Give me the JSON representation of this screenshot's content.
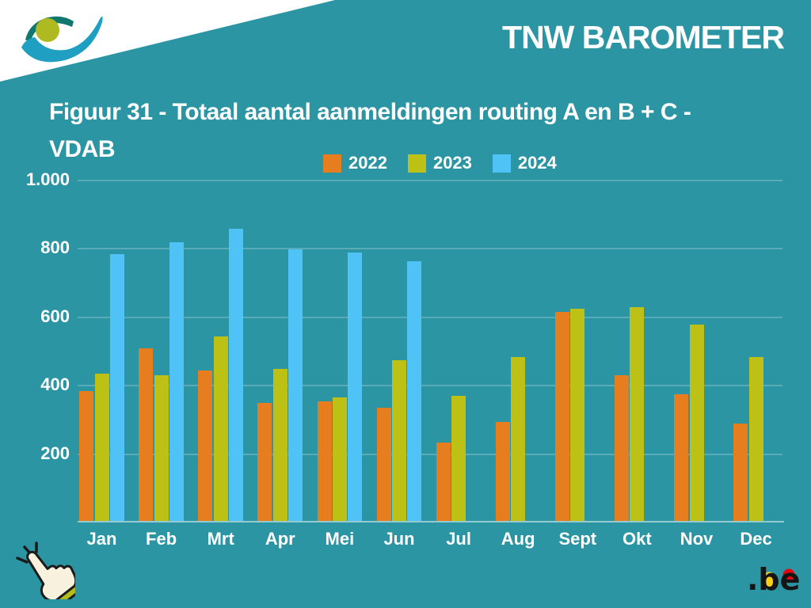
{
  "brand": {
    "title": "TNW BAROMETER"
  },
  "figure": {
    "title_line1": "Figuur 31 - Totaal aantal aanmeldingen routing A en B + C -",
    "title_line2": "VDAB"
  },
  "chart_data": {
    "type": "bar",
    "title": "Figuur 31 - Totaal aantal aanmeldingen routing A en B + C - VDAB",
    "categories": [
      "Jan",
      "Feb",
      "Mrt",
      "Apr",
      "Mei",
      "Jun",
      "Jul",
      "Aug",
      "Sept",
      "Okt",
      "Nov",
      "Dec"
    ],
    "series": [
      {
        "name": "2022",
        "color": "#E67E1F",
        "values": [
          380,
          505,
          440,
          345,
          350,
          330,
          230,
          290,
          610,
          425,
          370,
          285
        ]
      },
      {
        "name": "2023",
        "color": "#BDC116",
        "values": [
          430,
          425,
          540,
          445,
          360,
          470,
          365,
          480,
          620,
          625,
          575,
          480
        ]
      },
      {
        "name": "2024",
        "color": "#4FC3F5",
        "values": [
          780,
          815,
          855,
          795,
          785,
          760,
          null,
          null,
          null,
          null,
          null,
          null
        ]
      }
    ],
    "ylim": [
      0,
      1000
    ],
    "yticks": [
      {
        "v": 200,
        "label": "200"
      },
      {
        "v": 400,
        "label": "400"
      },
      {
        "v": 600,
        "label": "600"
      },
      {
        "v": 800,
        "label": "800"
      },
      {
        "v": 1000,
        "label": "1.000"
      }
    ],
    "grid": true,
    "legend_position": "top-center"
  },
  "footer": {
    "be_logo_text": ".be"
  },
  "icons": {
    "org_logo": "federal-health-eye-logo",
    "hand": "hand-click-icon",
    "be": "dot-be-logo"
  },
  "colors": {
    "background": "#2B95A3",
    "series_2022": "#E67E1F",
    "series_2023": "#BDC116",
    "series_2024": "#4FC3F5",
    "text": "#FFFFFF",
    "logo_dark_teal": "#11786E",
    "logo_blue": "#1F9FC2",
    "logo_olive": "#AFBA20",
    "be_yellow": "#F7D117",
    "be_red": "#E30613",
    "hand_fill": "#F8F1DD",
    "hand_cuff": "#B4BC1C"
  }
}
